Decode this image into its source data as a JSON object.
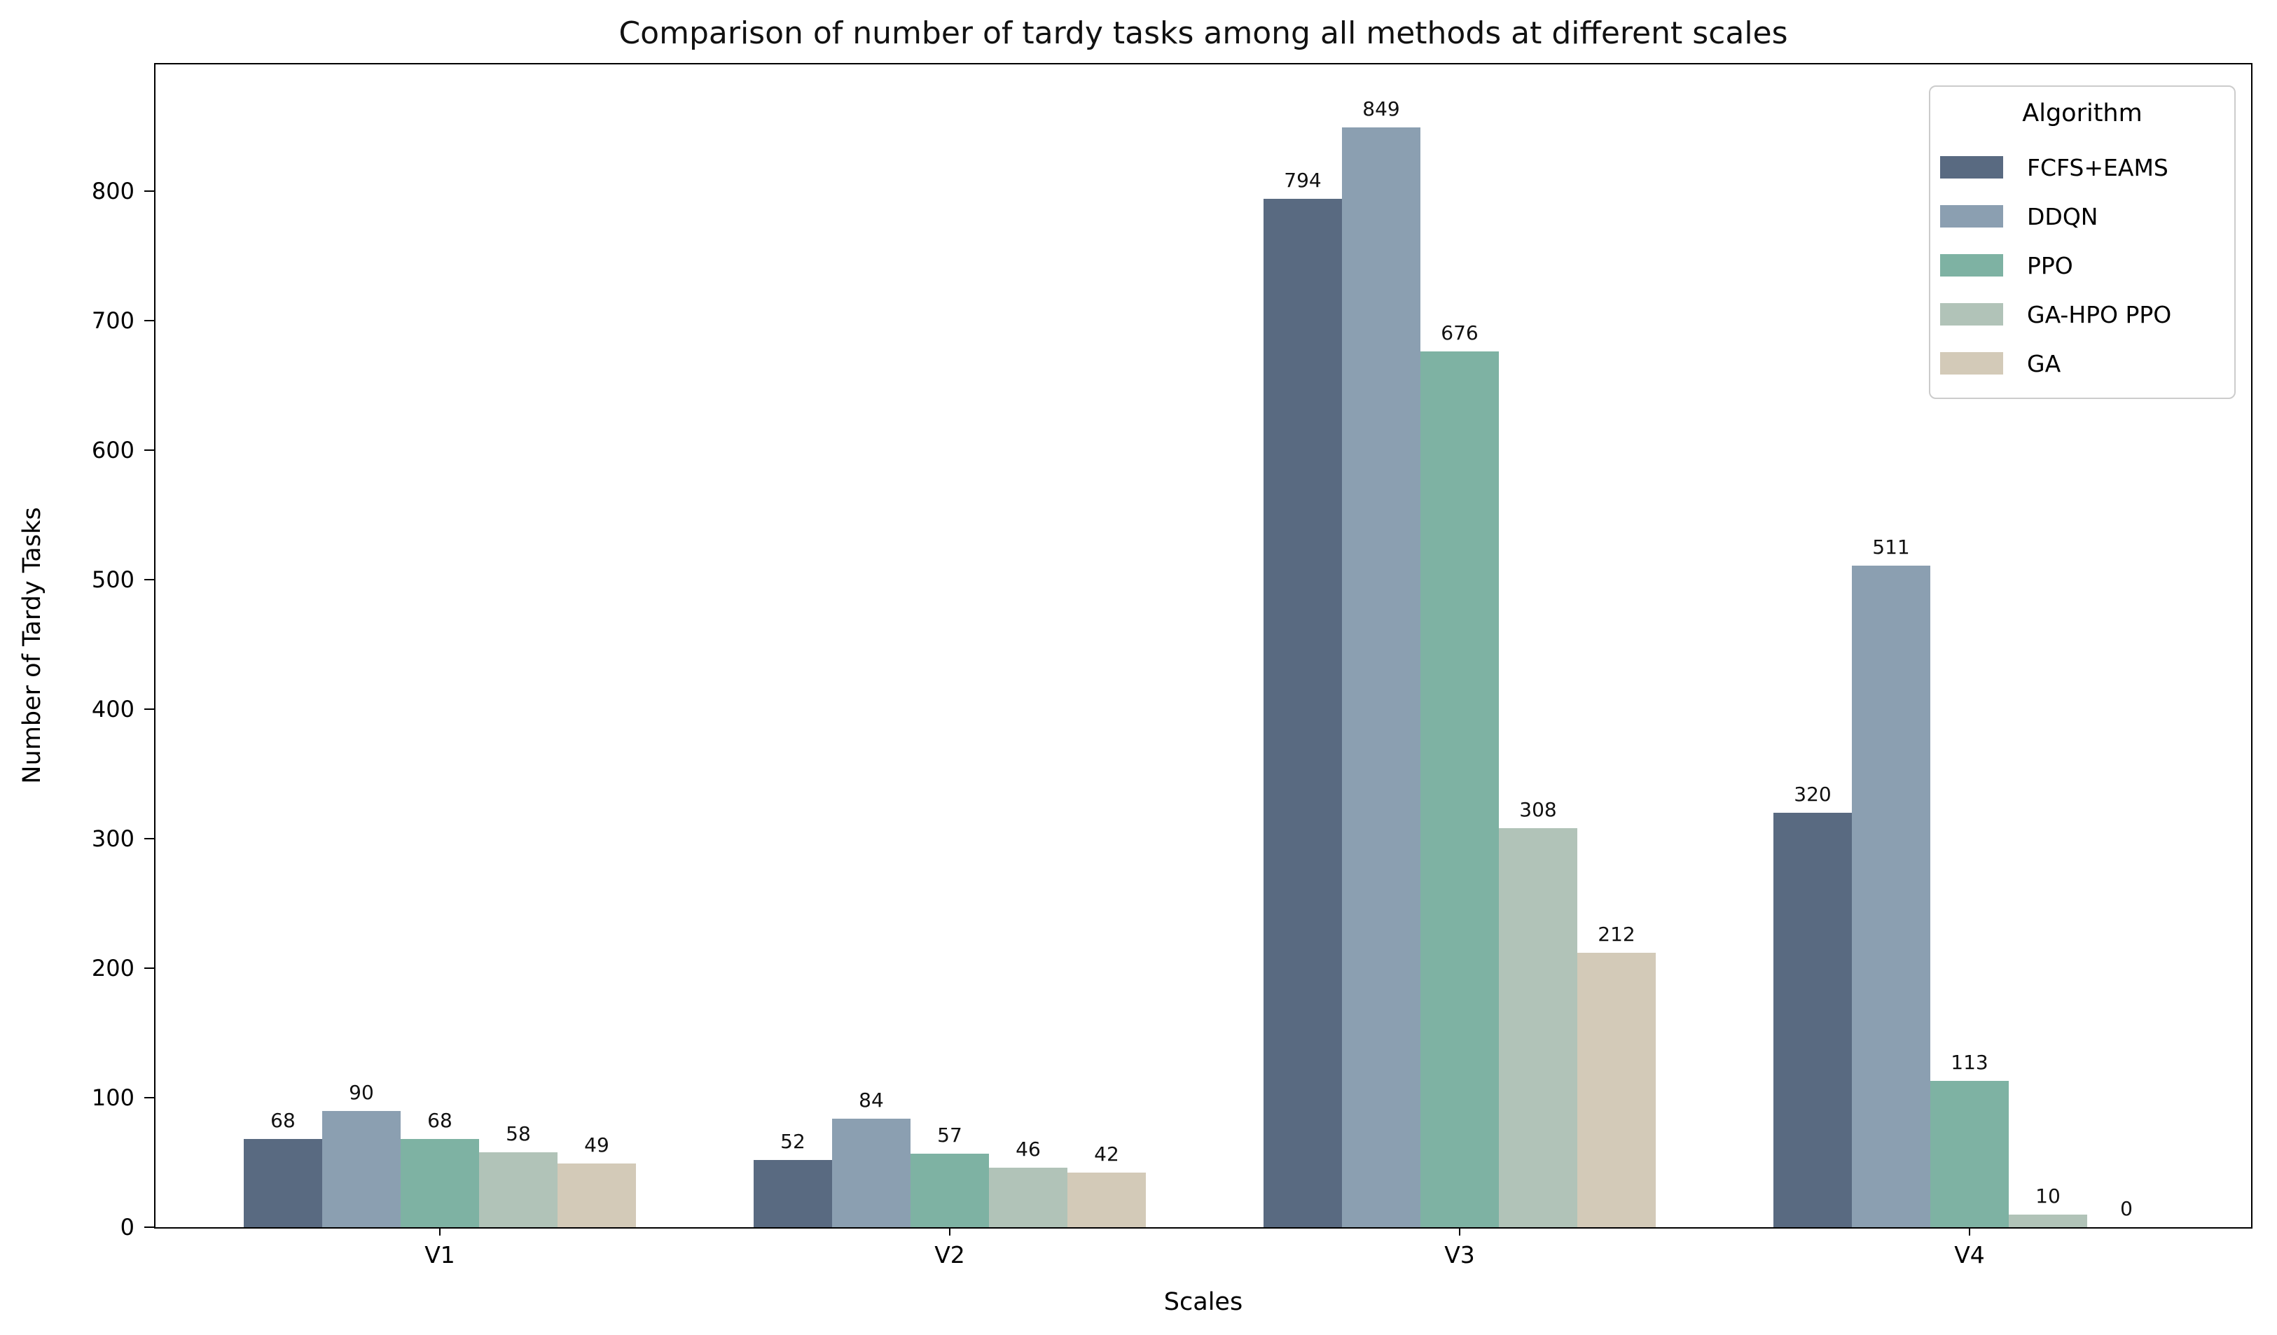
{
  "figure": {
    "background": "#ffffff",
    "text_color": "#111111",
    "spine_color": "#000000"
  },
  "chart_data": {
    "type": "bar",
    "title": "Comparison of number of tardy tasks among all methods at different scales",
    "xlabel": "Scales",
    "ylabel": "Number of Tardy Tasks",
    "categories": [
      "V1",
      "V2",
      "V3",
      "V4"
    ],
    "series": [
      {
        "name": "FCFS+EAMS",
        "color": "#596a81",
        "values": [
          68,
          52,
          794,
          320
        ]
      },
      {
        "name": "DDQN",
        "color": "#8b9fb1",
        "values": [
          90,
          84,
          849,
          511
        ]
      },
      {
        "name": "PPO",
        "color": "#7eb2a3",
        "values": [
          68,
          57,
          676,
          113
        ]
      },
      {
        "name": "GA-HPO PPO",
        "color": "#b1c3b8",
        "values": [
          58,
          46,
          308,
          10
        ]
      },
      {
        "name": "GA",
        "color": "#d3cab8",
        "values": [
          49,
          42,
          212,
          0
        ]
      }
    ],
    "ylim": [
      0,
      900
    ],
    "yticks": [
      0,
      100,
      200,
      300,
      400,
      500,
      600,
      700,
      800
    ],
    "grid": false,
    "bar_value_labels": true,
    "legend": {
      "title": "Algorithm",
      "position": "upper right"
    }
  }
}
